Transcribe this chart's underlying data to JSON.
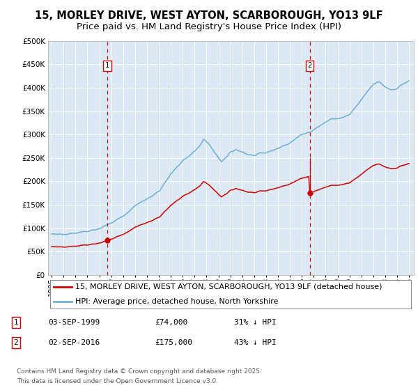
{
  "title_line1": "15, MORLEY DRIVE, WEST AYTON, SCARBOROUGH, YO13 9LF",
  "title_line2": "Price paid vs. HM Land Registry's House Price Index (HPI)",
  "legend_line1": "15, MORLEY DRIVE, WEST AYTON, SCARBOROUGH, YO13 9LF (detached house)",
  "legend_line2": "HPI: Average price, detached house, North Yorkshire",
  "footnote_line1": "Contains HM Land Registry data © Crown copyright and database right 2025.",
  "footnote_line2": "This data is licensed under the Open Government Licence v3.0.",
  "annotation1_date": "03-SEP-1999",
  "annotation1_price": "£74,000",
  "annotation1_hpi": "31% ↓ HPI",
  "annotation2_date": "02-SEP-2016",
  "annotation2_price": "£175,000",
  "annotation2_hpi": "43% ↓ HPI",
  "property_color": "#cc0000",
  "hpi_color": "#6baed6",
  "plot_bg_color": "#dce9f5",
  "grid_color": "#ffffff",
  "vline_color": "#cc0000",
  "sale1_x": 1999.67,
  "sale1_y": 74000,
  "sale2_x": 2016.67,
  "sale2_y": 175000,
  "ylim": [
    0,
    500000
  ],
  "yticks": [
    0,
    50000,
    100000,
    150000,
    200000,
    250000,
    300000,
    350000,
    400000,
    450000,
    500000
  ],
  "xlim_min": 1994.7,
  "xlim_max": 2025.4,
  "title_fontsize": 10.5,
  "subtitle_fontsize": 9.5,
  "axis_label_fontsize": 7.5,
  "legend_fontsize": 8,
  "annot_fontsize": 8,
  "footnote_fontsize": 6.5
}
